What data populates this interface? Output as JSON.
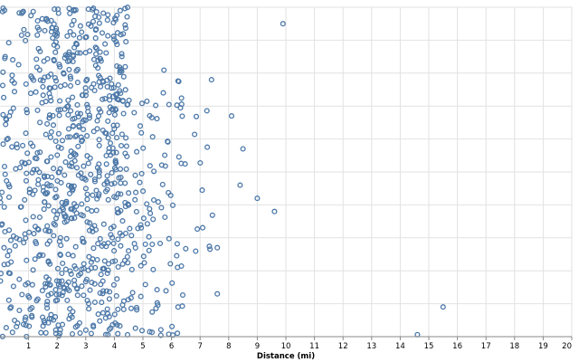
{
  "chart_data": {
    "type": "scatter",
    "xlabel": "Distance (mi)",
    "ylabel": "",
    "xlim": [
      0,
      20
    ],
    "ylim": [
      0,
      100
    ],
    "x_ticks": [
      "1",
      "2",
      "3",
      "4",
      "5",
      "6",
      "7",
      "8",
      "9",
      "10",
      "11",
      "12",
      "13",
      "14",
      "15",
      "16",
      "17",
      "18",
      "19",
      "20"
    ],
    "grid": true,
    "point_color": "#4c78a8",
    "notable_points": [
      {
        "x": 9.9,
        "y": 95
      },
      {
        "x": 15.5,
        "y": 9
      },
      {
        "x": 14.6,
        "y": 0.6
      },
      {
        "x": 9.6,
        "y": 38
      },
      {
        "x": 9.0,
        "y": 42
      },
      {
        "x": 8.4,
        "y": 46
      },
      {
        "x": 7.6,
        "y": 27
      },
      {
        "x": 7.6,
        "y": 13
      },
      {
        "x": 7.4,
        "y": 78
      },
      {
        "x": 8.1,
        "y": 67
      },
      {
        "x": 8.5,
        "y": 57
      }
    ],
    "clusters": [
      {
        "x_range": [
          0,
          1.5
        ],
        "y_range": [
          0,
          100
        ],
        "count": 170
      },
      {
        "x_range": [
          1.5,
          3.0
        ],
        "y_range": [
          0,
          100
        ],
        "count": 320
      },
      {
        "x_range": [
          3.0,
          4.5
        ],
        "y_range": [
          0,
          100
        ],
        "count": 300
      },
      {
        "x_range": [
          4.5,
          5.5
        ],
        "y_range": [
          0,
          78
        ],
        "count": 60
      },
      {
        "x_range": [
          5.5,
          6.5
        ],
        "y_range": [
          0,
          82
        ],
        "count": 45
      },
      {
        "x_range": [
          6.5,
          7.5
        ],
        "y_range": [
          20,
          70
        ],
        "count": 12
      }
    ]
  }
}
